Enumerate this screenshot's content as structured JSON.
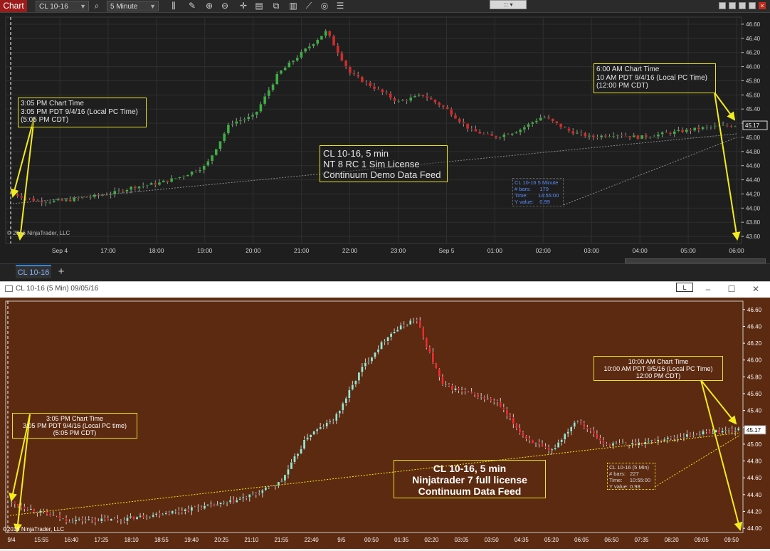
{
  "toolbar": {
    "chart_label": "Chart",
    "instrument": "CL 10-16",
    "interval": "5 Minute",
    "icons": [
      "search-icon",
      "bars-icon",
      "pencil-icon",
      "zoom-in-icon",
      "zoom-out-icon",
      "crosshair-icon",
      "properties-icon",
      "strategies-icon",
      "indicators-icon",
      "drawing-icon",
      "refresh-icon",
      "list-icon"
    ],
    "center_widget": "::: ▾"
  },
  "nt8": {
    "tab_label": "CL 10-16",
    "add_tab": "+",
    "copyright": "© 2016 NinjaTrader, LLC",
    "y_ticks": [
      "46.60",
      "46.40",
      "46.20",
      "46.00",
      "45.80",
      "45.60",
      "45.40",
      "45.20",
      "45.00",
      "44.80",
      "44.60",
      "44.40",
      "44.20",
      "44.00",
      "43.80",
      "43.60"
    ],
    "current_price": "45.17",
    "x_ticks": [
      "Sep 4",
      "17:00",
      "18:00",
      "19:00",
      "20:00",
      "21:00",
      "22:00",
      "23:00",
      "Sep 5",
      "01:00",
      "02:00",
      "03:00",
      "04:00",
      "05:00",
      "06:00"
    ],
    "annotation_left": "3:05 PM Chart Time\n3:05 PM PDT 9/4/16 (Local PC Time)\n(5:05 PM CDT)",
    "annotation_right": "6:00 AM Chart Time\n10 AM PDT 9/4/16 (Local PC Time)\n(12:00 PM CDT)",
    "annotation_center": "CL 10-16, 5 min\nNT 8 RC 1 Sim License\nContinuum Demo Data Feed",
    "info_box": "CL 10-16 5 Minute\n# bars:      179\nTime:       14:55:00\nY value:    0.99"
  },
  "nt7": {
    "window_title": "CL 10-16 (5 Min)  09/05/16",
    "l_button": "L",
    "copyright": "©2016 NinjaTrader, LLC",
    "y_ticks": [
      "46.60",
      "46.40",
      "46.20",
      "46.00",
      "45.80",
      "45.60",
      "45.40",
      "45.20",
      "45.00",
      "44.80",
      "44.60",
      "44.40",
      "44.20",
      "44.00"
    ],
    "current_price": "45.17",
    "x_ticks": [
      "9/4",
      "15:55",
      "16:40",
      "17:25",
      "18:10",
      "18:55",
      "19:40",
      "20:25",
      "21:10",
      "21:55",
      "22:40",
      "9/5",
      "00:50",
      "01:35",
      "02:20",
      "03:05",
      "03:50",
      "04:35",
      "05:20",
      "06:05",
      "06:50",
      "07:35",
      "08:20",
      "09:05",
      "09:50"
    ],
    "annotation_left": "3:05 PM Chart Time\n3:05 PM PDT 9/4/16 (Local PC time)\n(5:05 PM CDT)",
    "annotation_right": "10:00 AM Chart Time\n10:00 AM PDT 9/5/16 (Local PC Time)\n12:00 PM CDT)",
    "annotation_center": "CL 10-16, 5 min\nNinjatrader 7 full license\nContinuum Data Feed",
    "info_box": "CL 10-16 (5 Min)\n# bars:   227\nTime:     10:55:00\nY value: 0.98"
  },
  "chart_data": [
    {
      "type": "candlestick",
      "title": "",
      "instrument": "CL 10-16",
      "interval": "5 Minute",
      "ylim": [
        43.5,
        46.7
      ],
      "x_ticks": [
        "Sep 4",
        "17:00",
        "18:00",
        "19:00",
        "20:00",
        "21:00",
        "22:00",
        "23:00",
        "Sep 5",
        "01:00",
        "02:00",
        "03:00",
        "04:00",
        "05:00",
        "06:00"
      ],
      "anchor_closes": [
        44.2,
        44.1,
        44.1,
        44.15,
        44.2,
        44.3,
        44.35,
        44.45,
        44.6,
        45.2,
        45.3,
        45.9,
        46.2,
        46.5,
        45.9,
        45.7,
        45.5,
        45.6,
        45.4,
        45.1,
        45.0,
        45.1,
        45.3,
        45.1,
        45.0,
        45.05,
        45.0,
        45.05,
        45.1,
        45.15,
        45.17
      ],
      "last_price": 45.17,
      "colors": {
        "up": "#3cb043",
        "down": "#d42a2a",
        "background": "#1e1e1e"
      }
    },
    {
      "type": "candlestick",
      "title": "",
      "instrument": "CL 10-16",
      "interval": "5 Min",
      "ylim": [
        43.95,
        46.7
      ],
      "x_ticks": [
        "9/4",
        "15:55",
        "16:40",
        "17:25",
        "18:10",
        "18:55",
        "19:40",
        "20:25",
        "21:10",
        "21:55",
        "22:40",
        "9/5",
        "00:50",
        "01:35",
        "02:20",
        "03:05",
        "03:50",
        "04:35",
        "05:20",
        "06:05",
        "06:50",
        "07:35",
        "08:20",
        "09:05",
        "09:50"
      ],
      "anchor_closes": [
        44.3,
        44.2,
        44.1,
        44.1,
        44.1,
        44.15,
        44.2,
        44.25,
        44.3,
        44.4,
        44.55,
        45.1,
        45.3,
        45.9,
        46.3,
        46.5,
        45.7,
        45.6,
        45.5,
        45.1,
        44.9,
        45.3,
        45.0,
        45.0,
        45.05,
        45.1,
        45.15,
        45.17
      ],
      "last_price": 45.17,
      "colors": {
        "up": "#9fe6c8",
        "down": "#ff2a2a",
        "background": "#5c2a10"
      }
    }
  ]
}
